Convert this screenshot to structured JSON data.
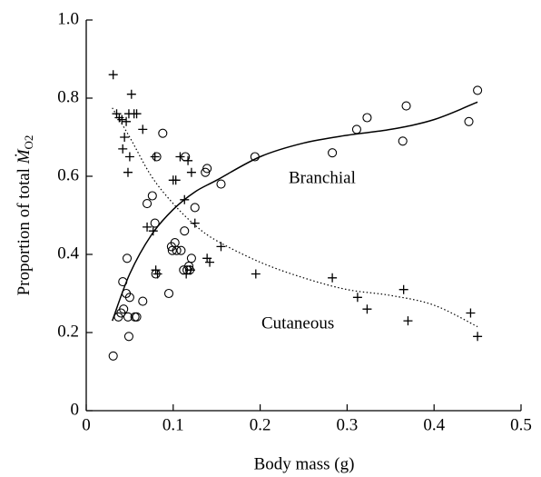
{
  "chart_data": {
    "type": "scatter",
    "xlabel": "Body mass (g)",
    "ylabel": {
      "text": "Proportion of total",
      "symbol": "Ṁ",
      "subscript": "O2"
    },
    "xlim": [
      0,
      0.5
    ],
    "ylim": [
      0,
      1
    ],
    "xticks": [
      0,
      0.1,
      0.2,
      0.3,
      0.4,
      0.5
    ],
    "yticks": [
      0,
      0.2,
      0.4,
      0.6,
      0.8,
      {
        "value": 1,
        "label": "1.0"
      }
    ],
    "annotations": [
      "Branchial",
      "Cutaneous"
    ],
    "series": [
      {
        "marker": "circle",
        "color": "#000000",
        "x": [
          0.031,
          0.037,
          0.04,
          0.042,
          0.043,
          0.047,
          0.046,
          0.048,
          0.05,
          0.049,
          0.056,
          0.058,
          0.065,
          0.07,
          0.076,
          0.079,
          0.08,
          0.081,
          0.088,
          0.095,
          0.098,
          0.099,
          0.102,
          0.104,
          0.109,
          0.112,
          0.113,
          0.114,
          0.116,
          0.118,
          0.119,
          0.121,
          0.125,
          0.137,
          0.139,
          0.155,
          0.194,
          0.283,
          0.311,
          0.323,
          0.364,
          0.368,
          0.44,
          0.45
        ],
        "values": [
          0.14,
          0.24,
          0.25,
          0.33,
          0.26,
          0.39,
          0.3,
          0.24,
          0.29,
          0.19,
          0.24,
          0.24,
          0.28,
          0.53,
          0.55,
          0.48,
          0.35,
          0.65,
          0.71,
          0.3,
          0.42,
          0.41,
          0.43,
          0.41,
          0.41,
          0.36,
          0.46,
          0.65,
          0.36,
          0.37,
          0.36,
          0.39,
          0.52,
          0.61,
          0.62,
          0.58,
          0.65,
          0.66,
          0.72,
          0.75,
          0.69,
          0.78,
          0.74,
          0.82
        ]
      },
      {
        "marker": "plus",
        "color": "#000000",
        "x": [
          0.031,
          0.035,
          0.038,
          0.041,
          0.042,
          0.044,
          0.046,
          0.048,
          0.049,
          0.052,
          0.05,
          0.055,
          0.058,
          0.065,
          0.07,
          0.077,
          0.079,
          0.08,
          0.082,
          0.1,
          0.103,
          0.108,
          0.113,
          0.115,
          0.117,
          0.12,
          0.121,
          0.125,
          0.139,
          0.142,
          0.155,
          0.195,
          0.283,
          0.312,
          0.323,
          0.365,
          0.37,
          0.442,
          0.45
        ],
        "values": [
          0.86,
          0.76,
          0.75,
          0.745,
          0.67,
          0.7,
          0.74,
          0.61,
          0.76,
          0.81,
          0.65,
          0.76,
          0.76,
          0.72,
          0.47,
          0.46,
          0.65,
          0.36,
          0.35,
          0.59,
          0.59,
          0.65,
          0.54,
          0.35,
          0.64,
          0.36,
          0.61,
          0.48,
          0.39,
          0.38,
          0.42,
          0.35,
          0.34,
          0.29,
          0.26,
          0.31,
          0.23,
          0.25,
          0.19
        ]
      },
      {
        "marker": "line",
        "line_style": "solid",
        "color": "#000000",
        "x": [
          0.03,
          0.05,
          0.075,
          0.1,
          0.125,
          0.15,
          0.2,
          0.25,
          0.3,
          0.35,
          0.4,
          0.45
        ],
        "values": [
          0.23,
          0.35,
          0.45,
          0.515,
          0.56,
          0.59,
          0.65,
          0.685,
          0.705,
          0.72,
          0.745,
          0.79
        ]
      },
      {
        "marker": "line",
        "line_style": "dotted",
        "color": "#000000",
        "x": [
          0.03,
          0.05,
          0.075,
          0.1,
          0.125,
          0.15,
          0.2,
          0.25,
          0.3,
          0.35,
          0.4,
          0.45
        ],
        "values": [
          0.775,
          0.7,
          0.6,
          0.53,
          0.475,
          0.435,
          0.38,
          0.34,
          0.31,
          0.295,
          0.27,
          0.215
        ]
      }
    ]
  }
}
